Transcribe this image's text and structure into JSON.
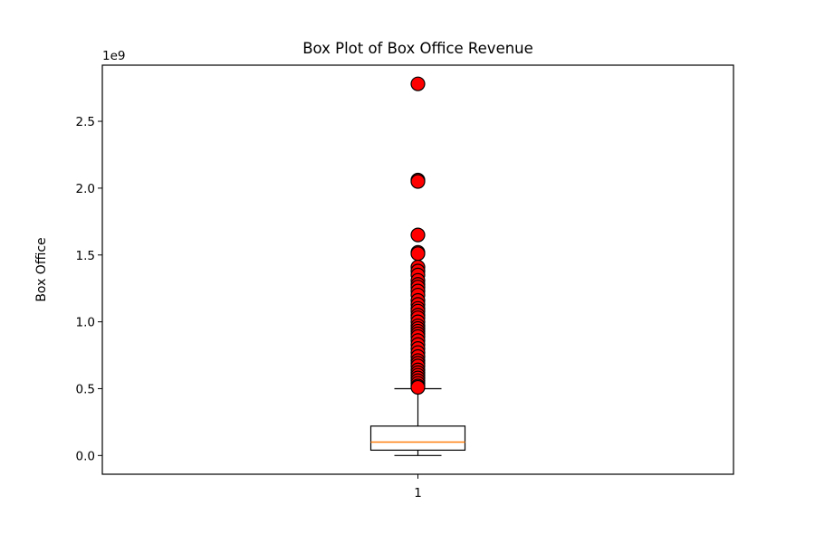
{
  "chart_data": {
    "type": "box",
    "title": "Box Plot of Box Office Revenue",
    "ylabel": "Box Office",
    "xlabel": "",
    "offset_label": "1e9",
    "categories": [
      "1"
    ],
    "yticks": [
      0.0,
      0.5,
      1.0,
      1.5,
      2.0,
      2.5
    ],
    "ytick_labels": [
      "0.0",
      "0.5",
      "1.0",
      "1.5",
      "2.0",
      "2.5"
    ],
    "ylim": [
      -0.14,
      2.92
    ],
    "grid": false,
    "series": [
      {
        "category": "1",
        "min": 0.0,
        "q1": 0.04,
        "median": 0.1,
        "q3": 0.22,
        "whisker_high": 0.5,
        "outliers": [
          2.78,
          2.06,
          2.05,
          1.65,
          1.52,
          1.51,
          1.41,
          1.38,
          1.35,
          1.31,
          1.28,
          1.26,
          1.23,
          1.2,
          1.16,
          1.13,
          1.1,
          1.08,
          1.05,
          1.03,
          1.0,
          0.97,
          0.95,
          0.93,
          0.91,
          0.89,
          0.86,
          0.83,
          0.8,
          0.77,
          0.74,
          0.71,
          0.69,
          0.67,
          0.64,
          0.62,
          0.6,
          0.58,
          0.56,
          0.54,
          0.52,
          0.51
        ]
      }
    ],
    "colors": {
      "box": "#000000",
      "median": "#ff7f0e",
      "outlier_fill": "#ff0000",
      "outlier_edge": "#000000"
    }
  }
}
